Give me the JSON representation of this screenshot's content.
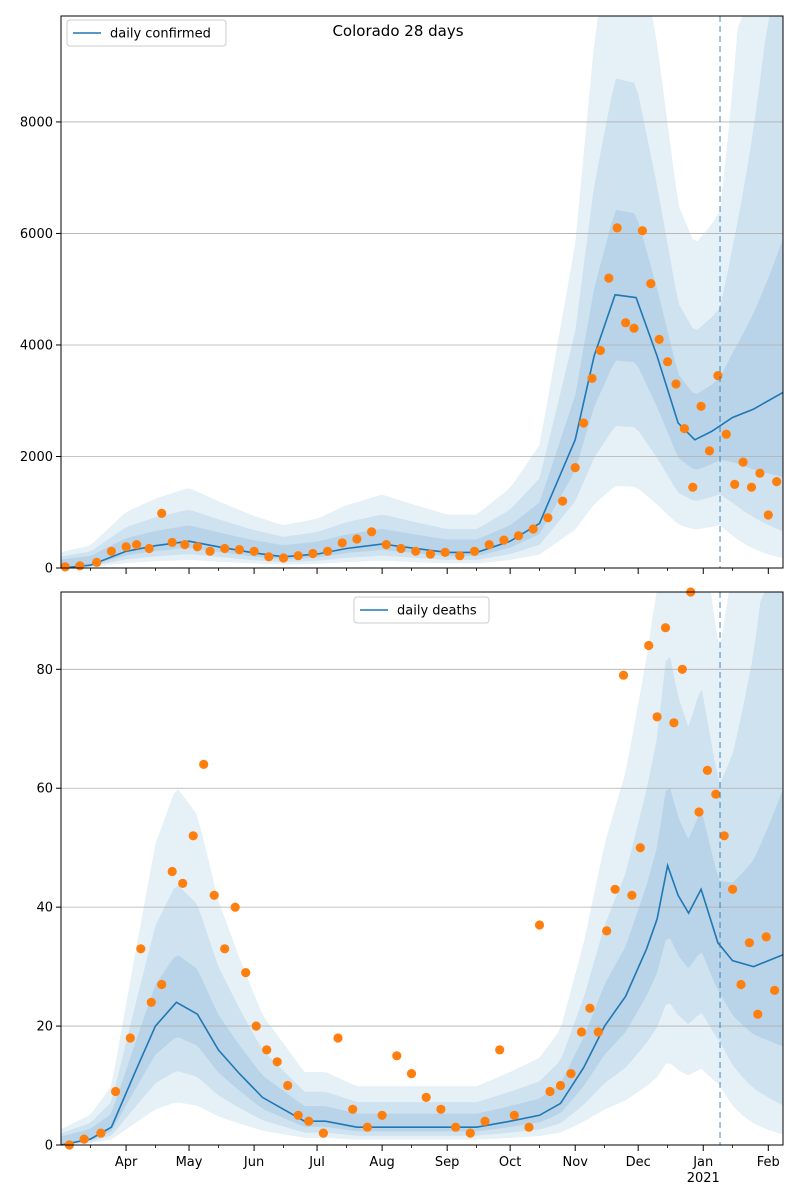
{
  "figure": {
    "title": "Colorado 28 days"
  },
  "colors": {
    "line": "#1f77b4",
    "points": "#ff7f0e",
    "band": "#1f77b4",
    "grid": "#b0b0b0",
    "vline": "#1f77b4"
  },
  "chart_data": [
    {
      "type": "line",
      "title": "Colorado 28 days",
      "legend": "daily confirmed",
      "legend_position": "top-left",
      "grid": "horizontal",
      "ylim": [
        0,
        9900
      ],
      "yticks": [
        0,
        2000,
        4000,
        6000,
        8000
      ],
      "xlim": [
        "2020-03-01",
        "2021-02-08"
      ],
      "forecast_start": "2021-01-09",
      "series": [
        {
          "name": "daily confirmed",
          "kind": "model-median",
          "x": [
            "2020-03-01",
            "2020-03-15",
            "2020-04-01",
            "2020-04-15",
            "2020-05-01",
            "2020-05-15",
            "2020-06-01",
            "2020-06-15",
            "2020-07-01",
            "2020-07-15",
            "2020-08-01",
            "2020-08-15",
            "2020-09-01",
            "2020-09-15",
            "2020-10-01",
            "2020-10-15",
            "2020-11-01",
            "2020-11-10",
            "2020-11-20",
            "2020-11-30",
            "2020-12-10",
            "2020-12-20",
            "2020-12-28",
            "2021-01-05",
            "2021-01-15",
            "2021-01-25",
            "2021-02-08"
          ],
          "y": [
            0,
            50,
            300,
            400,
            480,
            380,
            270,
            200,
            250,
            350,
            430,
            360,
            280,
            280,
            480,
            800,
            2300,
            3800,
            4900,
            4850,
            3800,
            2600,
            2300,
            2450,
            2700,
            2850,
            3150
          ]
        },
        {
          "name": "",
          "kind": "observed",
          "x": [
            "2020-03-03",
            "2020-03-10",
            "2020-03-18",
            "2020-03-25",
            "2020-04-01",
            "2020-04-06",
            "2020-04-12",
            "2020-04-18",
            "2020-04-23",
            "2020-04-29",
            "2020-05-05",
            "2020-05-11",
            "2020-05-18",
            "2020-05-25",
            "2020-06-01",
            "2020-06-08",
            "2020-06-15",
            "2020-06-22",
            "2020-06-29",
            "2020-07-06",
            "2020-07-13",
            "2020-07-20",
            "2020-07-27",
            "2020-08-03",
            "2020-08-10",
            "2020-08-17",
            "2020-08-24",
            "2020-08-31",
            "2020-09-07",
            "2020-09-14",
            "2020-09-21",
            "2020-09-28",
            "2020-10-05",
            "2020-10-12",
            "2020-10-19",
            "2020-10-26",
            "2020-11-01",
            "2020-11-05",
            "2020-11-09",
            "2020-11-13",
            "2020-11-17",
            "2020-11-21",
            "2020-11-25",
            "2020-11-29",
            "2020-12-03",
            "2020-12-07",
            "2020-12-11",
            "2020-12-15",
            "2020-12-19",
            "2020-12-23",
            "2020-12-27",
            "2020-12-31",
            "2021-01-04",
            "2021-01-08",
            "2021-01-12",
            "2021-01-16",
            "2021-01-20",
            "2021-01-24",
            "2021-01-28",
            "2021-02-01",
            "2021-02-05"
          ],
          "y": [
            20,
            40,
            100,
            300,
            380,
            420,
            350,
            980,
            460,
            420,
            380,
            300,
            350,
            330,
            300,
            200,
            180,
            220,
            260,
            300,
            450,
            520,
            650,
            420,
            350,
            300,
            250,
            280,
            220,
            300,
            420,
            500,
            580,
            700,
            900,
            1200,
            1800,
            2600,
            3400,
            3900,
            5200,
            6100,
            4400,
            4300,
            6050,
            5100,
            4100,
            3700,
            3300,
            2500,
            1450,
            2900,
            2100,
            3450,
            2400,
            1500,
            1900,
            1450,
            1700,
            950,
            1550
          ]
        }
      ],
      "bands_note": "nested uncertainty intervals around the model median"
    },
    {
      "type": "line",
      "title": "",
      "legend": "daily deaths",
      "legend_position": "top-center",
      "grid": "horizontal",
      "ylim": [
        0,
        93
      ],
      "yticks": [
        0,
        20,
        40,
        60,
        80
      ],
      "xlim": [
        "2020-03-01",
        "2021-02-08"
      ],
      "xticks": [
        {
          "date": "2020-04-01",
          "label": "Apr"
        },
        {
          "date": "2020-05-01",
          "label": "May"
        },
        {
          "date": "2020-06-01",
          "label": "Jun"
        },
        {
          "date": "2020-07-01",
          "label": "Jul"
        },
        {
          "date": "2020-08-01",
          "label": "Aug"
        },
        {
          "date": "2020-09-01",
          "label": "Sep"
        },
        {
          "date": "2020-10-01",
          "label": "Oct"
        },
        {
          "date": "2020-11-01",
          "label": "Nov"
        },
        {
          "date": "2020-12-01",
          "label": "Dec"
        },
        {
          "date": "2021-01-01",
          "label": "Jan"
        },
        {
          "date": "2021-02-01",
          "label": "Feb"
        }
      ],
      "xtick_year": "2021",
      "forecast_start": "2021-01-09",
      "series": [
        {
          "name": "daily deaths",
          "kind": "model-median",
          "x": [
            "2020-03-01",
            "2020-03-15",
            "2020-03-25",
            "2020-04-05",
            "2020-04-15",
            "2020-04-25",
            "2020-05-05",
            "2020-05-15",
            "2020-05-25",
            "2020-06-05",
            "2020-06-15",
            "2020-06-25",
            "2020-07-05",
            "2020-07-20",
            "2020-08-01",
            "2020-08-15",
            "2020-09-01",
            "2020-09-15",
            "2020-10-01",
            "2020-10-15",
            "2020-10-25",
            "2020-11-05",
            "2020-11-15",
            "2020-11-25",
            "2020-12-05",
            "2020-12-10",
            "2020-12-15",
            "2020-12-20",
            "2020-12-25",
            "2020-12-31",
            "2021-01-08",
            "2021-01-15",
            "2021-01-25",
            "2021-02-08"
          ],
          "y": [
            0,
            1,
            3,
            12,
            20,
            24,
            22,
            16,
            12,
            8,
            6,
            4,
            4,
            3,
            3,
            3,
            3,
            3,
            4,
            5,
            7,
            13,
            20,
            25,
            33,
            38,
            47,
            42,
            39,
            43,
            34,
            31,
            30,
            32
          ]
        },
        {
          "name": "",
          "kind": "observed",
          "x": [
            "2020-03-05",
            "2020-03-12",
            "2020-03-20",
            "2020-03-27",
            "2020-04-03",
            "2020-04-08",
            "2020-04-13",
            "2020-04-18",
            "2020-04-23",
            "2020-04-28",
            "2020-05-03",
            "2020-05-08",
            "2020-05-13",
            "2020-05-18",
            "2020-05-23",
            "2020-05-28",
            "2020-06-02",
            "2020-06-07",
            "2020-06-12",
            "2020-06-17",
            "2020-06-22",
            "2020-06-27",
            "2020-07-04",
            "2020-07-11",
            "2020-07-18",
            "2020-07-25",
            "2020-08-01",
            "2020-08-08",
            "2020-08-15",
            "2020-08-22",
            "2020-08-29",
            "2020-09-05",
            "2020-09-12",
            "2020-09-19",
            "2020-09-26",
            "2020-10-03",
            "2020-10-10",
            "2020-10-15",
            "2020-10-20",
            "2020-10-25",
            "2020-10-30",
            "2020-11-04",
            "2020-11-08",
            "2020-11-12",
            "2020-11-16",
            "2020-11-20",
            "2020-11-24",
            "2020-11-28",
            "2020-12-02",
            "2020-12-06",
            "2020-12-10",
            "2020-12-14",
            "2020-12-18",
            "2020-12-22",
            "2020-12-26",
            "2020-12-30",
            "2021-01-03",
            "2021-01-07",
            "2021-01-11",
            "2021-01-15",
            "2021-01-19",
            "2021-01-23",
            "2021-01-27",
            "2021-01-31",
            "2021-02-04"
          ],
          "y": [
            0,
            1,
            2,
            9,
            18,
            33,
            24,
            27,
            46,
            44,
            52,
            64,
            42,
            33,
            40,
            29,
            20,
            16,
            14,
            10,
            5,
            4,
            2,
            18,
            6,
            3,
            5,
            15,
            12,
            8,
            6,
            3,
            2,
            4,
            16,
            5,
            3,
            37,
            9,
            10,
            12,
            19,
            23,
            19,
            36,
            43,
            79,
            42,
            50,
            84,
            72,
            87,
            71,
            80,
            93,
            56,
            63,
            59,
            52,
            43,
            27,
            34,
            22,
            35,
            26
          ]
        }
      ],
      "bands_note": "nested uncertainty intervals around the model median"
    }
  ]
}
